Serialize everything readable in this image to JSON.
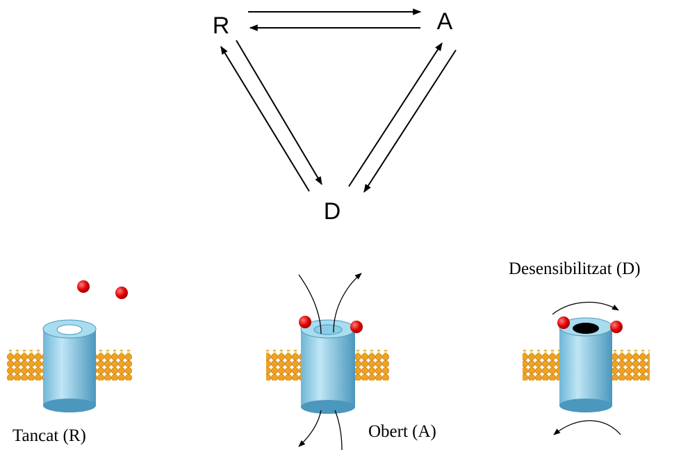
{
  "nodes": [
    {
      "label": "R"
    },
    {
      "label": "A"
    },
    {
      "label": "D"
    }
  ],
  "states": [
    {
      "label": "Tancat (R)"
    },
    {
      "label": "Obert (A)"
    },
    {
      "label": "Desensibilitzat (D)"
    }
  ]
}
